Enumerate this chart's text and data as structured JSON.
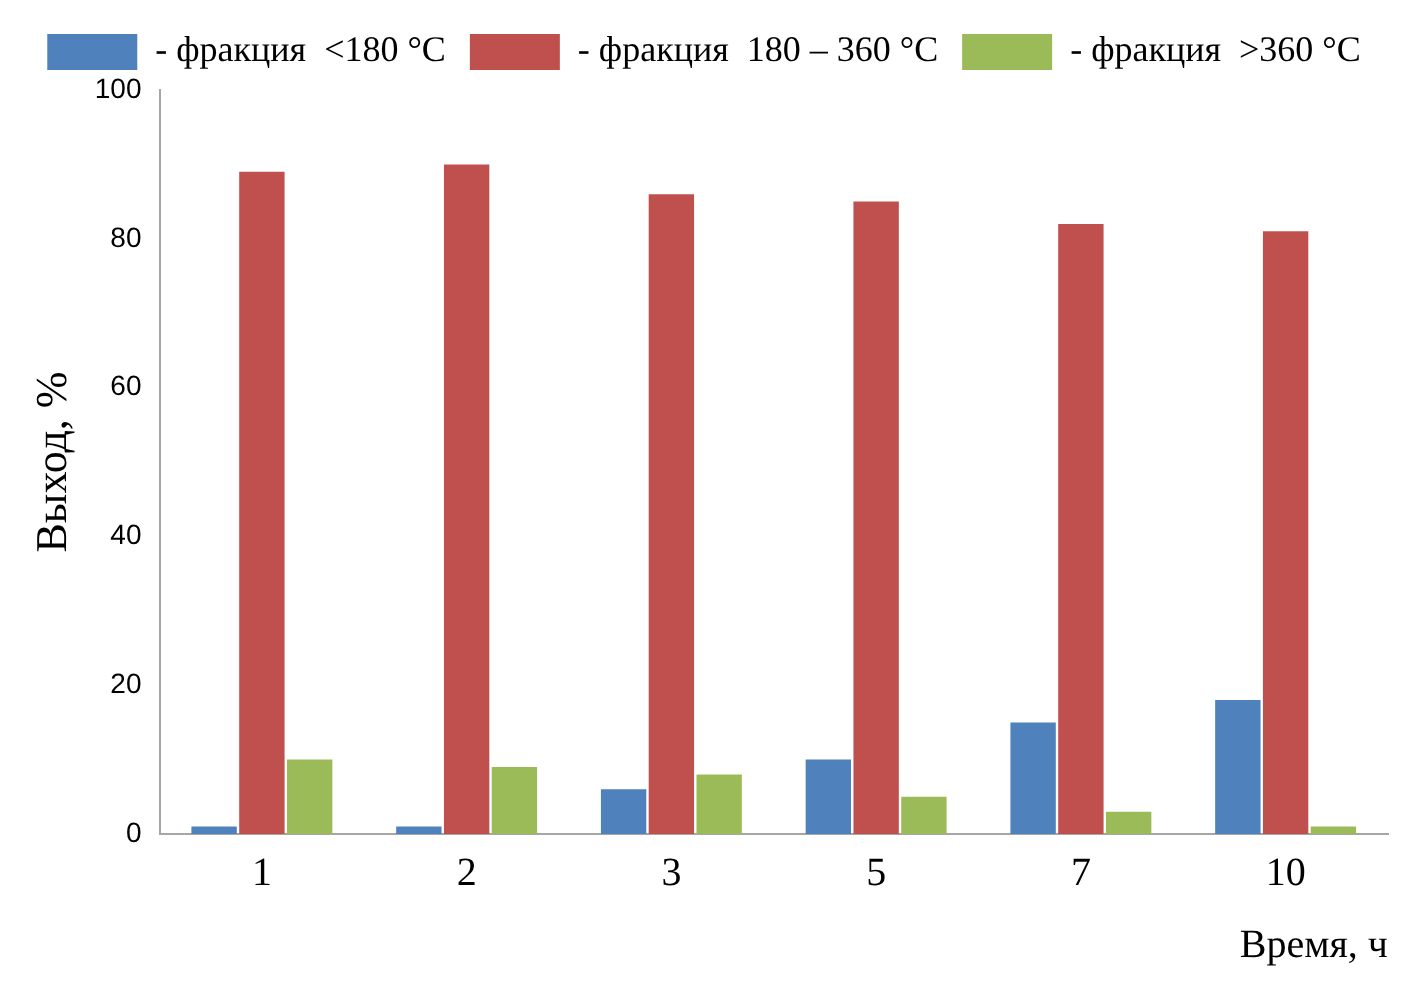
{
  "chart_data": {
    "type": "bar",
    "xlabel": "Время, ч",
    "ylabel": "Выход, %",
    "categories": [
      "1",
      "2",
      "3",
      "5",
      "7",
      "10"
    ],
    "series": [
      {
        "name": "- фракция  <180 °C",
        "color": "#4f81bd",
        "values": [
          1,
          1,
          6,
          10,
          15,
          18
        ]
      },
      {
        "name": "- фракция  180 – 360 °C",
        "color": "#c0504d",
        "values": [
          89,
          90,
          86,
          85,
          82,
          81
        ]
      },
      {
        "name": "- фракция  >360 °C",
        "color": "#9bbb59",
        "values": [
          10,
          9,
          8,
          5,
          3,
          1
        ]
      }
    ],
    "ylim": [
      0,
      100
    ],
    "yticks": [
      0,
      20,
      40,
      60,
      80,
      100
    ],
    "grid": false,
    "legend": "top"
  }
}
